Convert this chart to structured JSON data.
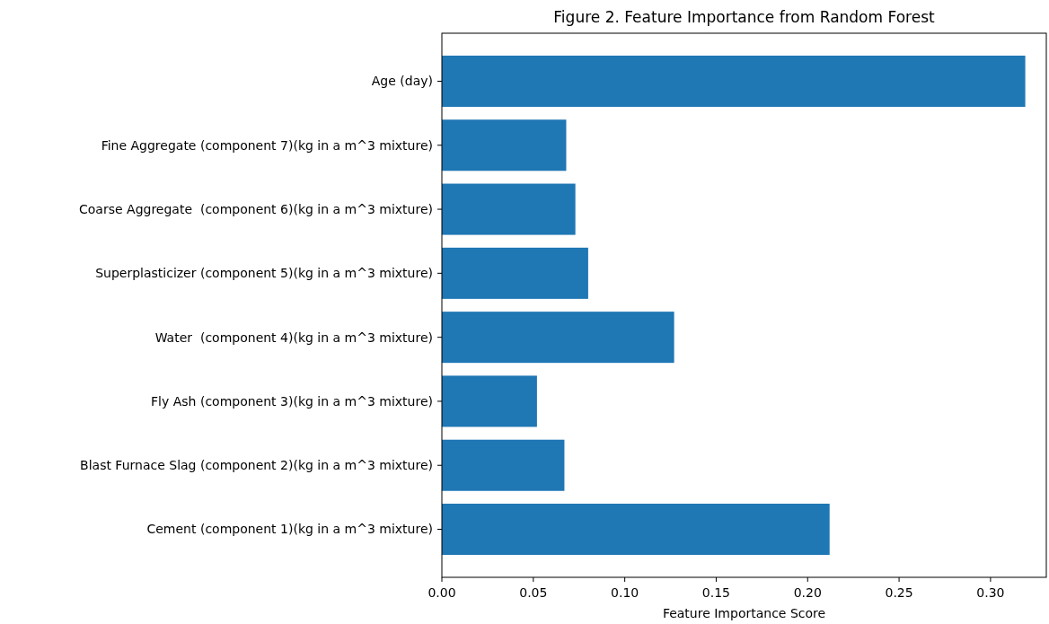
{
  "chart_data": {
    "type": "bar",
    "orientation": "horizontal",
    "title": "Figure 2. Feature Importance from Random Forest",
    "xlabel": "Feature Importance Score",
    "categories": [
      "Age (day)",
      "Fine Aggregate (component 7)(kg in a m^3 mixture)",
      "Coarse Aggregate  (component 6)(kg in a m^3 mixture)",
      "Superplasticizer (component 5)(kg in a m^3 mixture)",
      "Water  (component 4)(kg in a m^3 mixture)",
      "Fly Ash (component 3)(kg in a m^3 mixture)",
      "Blast Furnace Slag (component 2)(kg in a m^3 mixture)",
      "Cement (component 1)(kg in a m^3 mixture)"
    ],
    "values": [
      0.319,
      0.068,
      0.073,
      0.08,
      0.127,
      0.052,
      0.067,
      0.212
    ],
    "color": "#1f77b4",
    "xlim": [
      0,
      0.3305
    ],
    "xticks": [
      {
        "value": 0,
        "label": "0.00"
      },
      {
        "value": 0.05,
        "label": "0.05"
      },
      {
        "value": 0.1,
        "label": "0.10"
      },
      {
        "value": 0.15,
        "label": "0.15"
      },
      {
        "value": 0.2,
        "label": "0.20"
      },
      {
        "value": 0.25,
        "label": "0.25"
      },
      {
        "value": 0.3,
        "label": "0.30"
      }
    ]
  }
}
